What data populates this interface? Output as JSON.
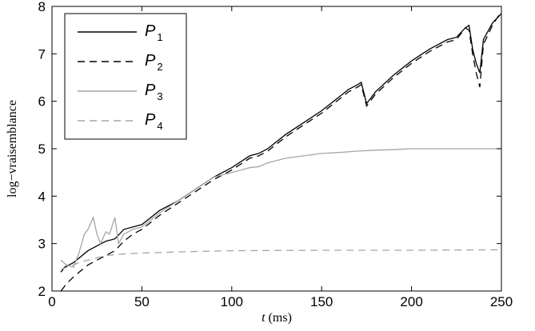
{
  "chart_data": {
    "type": "line",
    "title": "",
    "xlabel_var": "t",
    "xlabel_unit": " (ms)",
    "ylabel": "log−vraisemblance",
    "xlim": [
      0,
      250
    ],
    "ylim": [
      2,
      8
    ],
    "xticks": [
      0,
      50,
      100,
      150,
      200,
      250
    ],
    "yticks": [
      2,
      3,
      4,
      5,
      6,
      7,
      8
    ],
    "grid": false,
    "legend_position": "top-left",
    "series": [
      {
        "name": "P1",
        "name_base": "P",
        "name_sub": "1",
        "color": "#000000",
        "dash": "solid",
        "x": [
          5,
          7,
          12,
          20,
          25,
          30,
          35,
          40,
          45,
          50,
          60,
          70,
          80,
          90,
          100,
          110,
          115,
          120,
          130,
          140,
          150,
          160,
          165,
          170,
          172,
          175,
          180,
          190,
          200,
          210,
          220,
          225,
          230,
          232,
          234,
          236,
          238,
          240,
          245,
          250
        ],
        "y": [
          2.4,
          2.5,
          2.6,
          2.85,
          2.95,
          3.05,
          3.1,
          3.3,
          3.35,
          3.4,
          3.7,
          3.9,
          4.15,
          4.4,
          4.6,
          4.85,
          4.9,
          5.0,
          5.3,
          5.55,
          5.8,
          6.1,
          6.25,
          6.35,
          6.4,
          5.95,
          6.2,
          6.55,
          6.85,
          7.1,
          7.3,
          7.35,
          7.55,
          7.6,
          7.1,
          6.8,
          6.6,
          7.3,
          7.65,
          7.85
        ]
      },
      {
        "name": "P2",
        "name_base": "P",
        "name_sub": "2",
        "color": "#000000",
        "dash": "dashed",
        "x": [
          5,
          8,
          12,
          20,
          25,
          30,
          35,
          40,
          45,
          50,
          60,
          70,
          80,
          90,
          100,
          110,
          115,
          120,
          130,
          140,
          150,
          160,
          165,
          170,
          172,
          175,
          180,
          190,
          200,
          210,
          220,
          225,
          230,
          232,
          234,
          236,
          238,
          240,
          245,
          250
        ],
        "y": [
          2.0,
          2.15,
          2.3,
          2.55,
          2.65,
          2.75,
          2.85,
          3.05,
          3.2,
          3.3,
          3.6,
          3.85,
          4.1,
          4.35,
          4.55,
          4.8,
          4.85,
          4.95,
          5.25,
          5.5,
          5.75,
          6.05,
          6.2,
          6.3,
          6.35,
          5.9,
          6.15,
          6.5,
          6.8,
          7.05,
          7.25,
          7.3,
          7.55,
          7.5,
          7.0,
          6.6,
          6.3,
          7.2,
          7.6,
          7.9
        ]
      },
      {
        "name": "P3",
        "name_base": "P",
        "name_sub": "3",
        "color": "#a6a6a6",
        "dash": "solid",
        "x": [
          5,
          8,
          12,
          15,
          18,
          20,
          23,
          25,
          27,
          30,
          32,
          35,
          37,
          40,
          45,
          50,
          60,
          70,
          80,
          90,
          100,
          105,
          110,
          115,
          120,
          130,
          140,
          150,
          160,
          170,
          180,
          190,
          200,
          220,
          240,
          250
        ],
        "y": [
          2.65,
          2.55,
          2.5,
          2.8,
          3.2,
          3.3,
          3.55,
          3.2,
          3.0,
          3.25,
          3.2,
          3.55,
          3.0,
          3.2,
          3.3,
          3.35,
          3.65,
          3.9,
          4.15,
          4.4,
          4.5,
          4.55,
          4.6,
          4.62,
          4.7,
          4.8,
          4.85,
          4.9,
          4.92,
          4.95,
          4.97,
          4.98,
          5.0,
          5.0,
          5.0,
          5.0
        ]
      },
      {
        "name": "P4",
        "name_base": "P",
        "name_sub": "4",
        "color": "#a6a6a6",
        "dash": "dashed",
        "x": [
          5,
          8,
          12,
          15,
          20,
          25,
          30,
          40,
          50,
          75,
          100,
          150,
          200,
          250
        ],
        "y": [
          2.45,
          2.5,
          2.55,
          2.6,
          2.65,
          2.7,
          2.75,
          2.78,
          2.8,
          2.83,
          2.85,
          2.86,
          2.86,
          2.87
        ]
      }
    ]
  }
}
